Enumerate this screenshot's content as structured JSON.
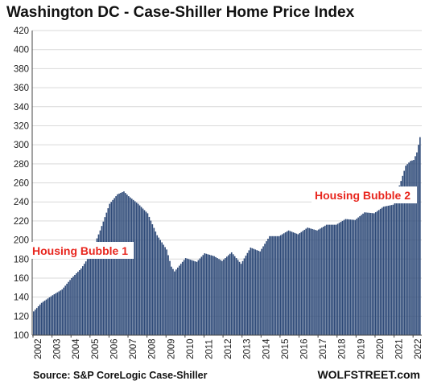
{
  "chart_data": {
    "type": "bar",
    "title": "Washington DC - Case-Shiller Home Price Index",
    "xlabel": "",
    "ylabel": "",
    "ylim": [
      100,
      420
    ],
    "y_ticks": [
      "100",
      "120",
      "140",
      "160",
      "180",
      "200",
      "220",
      "240",
      "260",
      "280",
      "300",
      "320",
      "340",
      "360",
      "380",
      "400",
      "420"
    ],
    "x_ticks": [
      "2002",
      "2003",
      "2004",
      "2005",
      "2006",
      "2007",
      "2008",
      "2009",
      "2010",
      "2011",
      "2012",
      "2013",
      "2014",
      "2015",
      "2016",
      "2017",
      "2018",
      "2019",
      "2020",
      "2021",
      "2022"
    ],
    "x_start_year": 2002,
    "grid": true,
    "bar_color": "#2e4a78",
    "annotation_color": "#e8261e",
    "series": [
      {
        "frequency": "monthly",
        "start": "2002-01",
        "end": "2022-05",
        "keypoints": [
          [
            "2002-01",
            125
          ],
          [
            "2002-06",
            134
          ],
          [
            "2003-01",
            142
          ],
          [
            "2003-07",
            148
          ],
          [
            "2004-01",
            160
          ],
          [
            "2004-07",
            170
          ],
          [
            "2005-01",
            185
          ],
          [
            "2005-07",
            210
          ],
          [
            "2006-01",
            238
          ],
          [
            "2006-06",
            248
          ],
          [
            "2006-10",
            251
          ],
          [
            "2007-01",
            246
          ],
          [
            "2007-07",
            238
          ],
          [
            "2008-01",
            228
          ],
          [
            "2008-07",
            205
          ],
          [
            "2009-01",
            190
          ],
          [
            "2009-04",
            172
          ],
          [
            "2009-06",
            167
          ],
          [
            "2010-01",
            181
          ],
          [
            "2010-08",
            177
          ],
          [
            "2011-01",
            186
          ],
          [
            "2011-07",
            183
          ],
          [
            "2011-12",
            178
          ],
          [
            "2012-06",
            187
          ],
          [
            "2012-12",
            175
          ],
          [
            "2013-06",
            192
          ],
          [
            "2013-12",
            188
          ],
          [
            "2014-06",
            204
          ],
          [
            "2014-12",
            204
          ],
          [
            "2015-06",
            210
          ],
          [
            "2015-12",
            206
          ],
          [
            "2016-06",
            213
          ],
          [
            "2016-12",
            210
          ],
          [
            "2017-06",
            216
          ],
          [
            "2017-12",
            216
          ],
          [
            "2018-06",
            222
          ],
          [
            "2018-12",
            221
          ],
          [
            "2019-06",
            229
          ],
          [
            "2019-12",
            228
          ],
          [
            "2020-06",
            235
          ],
          [
            "2020-12",
            237
          ],
          [
            "2021-02",
            248
          ],
          [
            "2021-05",
            262
          ],
          [
            "2021-08",
            278
          ],
          [
            "2021-11",
            283
          ],
          [
            "2022-01",
            284
          ],
          [
            "2022-03",
            292
          ],
          [
            "2022-05",
            308
          ]
        ]
      }
    ],
    "annotations": [
      {
        "text": "Housing Bubble 1"
      },
      {
        "text": "Housing Bubble 2"
      }
    ],
    "source": "Source: S&P CoreLogic Case-Shiller",
    "brand": "WOLFSTREET.com"
  }
}
